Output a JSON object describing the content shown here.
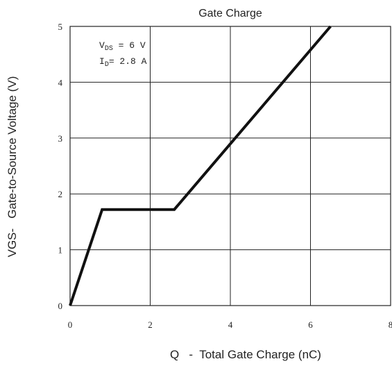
{
  "chart_data": {
    "type": "line",
    "title": "Gate Charge",
    "xlabel": "Q   -  Total Gate Charge (nC)",
    "ylabel": "VGS-   Gate-to-Source Voltage (V)",
    "xlim": [
      0,
      8
    ],
    "ylim": [
      0,
      5
    ],
    "x_ticks": [
      "0",
      "2",
      "4",
      "6",
      "8"
    ],
    "y_ticks": [
      "0",
      "1",
      "2",
      "3",
      "4",
      "5"
    ],
    "grid": true,
    "series": [
      {
        "x": [
          0,
          0.8,
          2.6,
          6.5
        ],
        "y": [
          0,
          1.72,
          1.72,
          5
        ]
      }
    ],
    "annotations": {
      "vds": {
        "main": "V",
        "sub": "DS",
        "rest": "  = 6 V"
      },
      "id": {
        "main": "I",
        "sub": "D",
        "rest": "= 2.8 A"
      }
    }
  }
}
